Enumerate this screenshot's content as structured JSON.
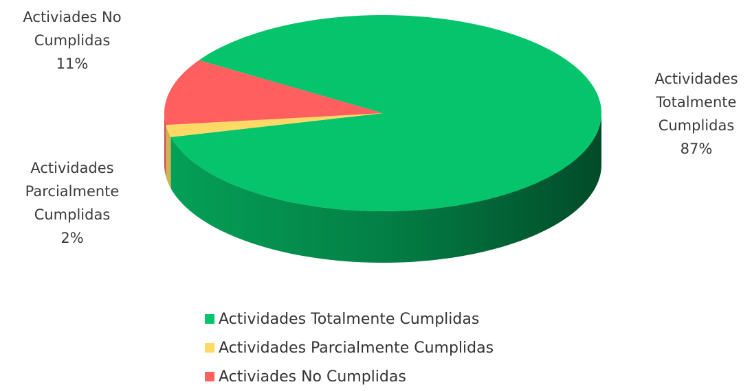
{
  "chart_data": {
    "type": "pie",
    "categories": [
      "Actividades Totalmente Cumplidas",
      "Actividades Parcialmente Cumplidas",
      "Activiades No Cumplidas"
    ],
    "values": [
      87,
      2,
      11
    ],
    "value_labels": [
      "87%",
      "2%",
      "11%"
    ],
    "colors": [
      "#05c46b",
      "#ffd966",
      "#ff5f5f"
    ],
    "legend": "bottom"
  }
}
